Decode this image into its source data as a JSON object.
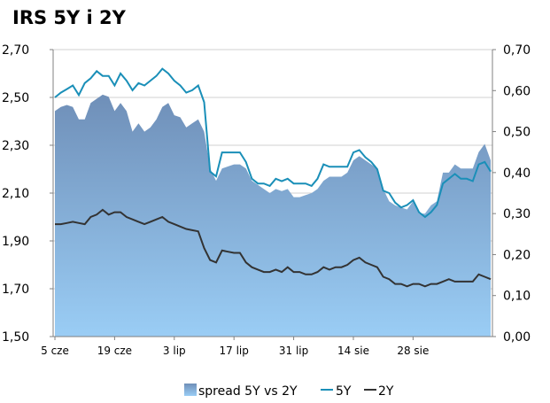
{
  "chart_data": {
    "type": "area",
    "title": "IRS 5Y i 2Y",
    "x_tick_labels": [
      "5 cze",
      "19 cze",
      "3 lip",
      "17 lip",
      "31 lip",
      "14 sie",
      "28 sie"
    ],
    "y_left": {
      "range": [
        1.5,
        2.7
      ],
      "ticks": [
        "1,50",
        "1,70",
        "1,90",
        "2,10",
        "2,30",
        "2,50",
        "2,70"
      ]
    },
    "y_right": {
      "range": [
        0.0,
        0.7
      ],
      "ticks": [
        "0,00",
        "0,10",
        "0,20",
        "0,30",
        "0,40",
        "0,50",
        "0,60",
        "0,70"
      ]
    },
    "grid": "horizontal",
    "legend_placement": "bottom",
    "colors": {
      "spread_top": "#6f8fb8",
      "spread_bottom": "#9acdf5",
      "five_y": "#1a8fb8",
      "two_y": "#333333"
    },
    "series": [
      {
        "name": "spread 5Y vs 2Y",
        "axis": "right",
        "values": [
          0.55,
          0.56,
          0.565,
          0.56,
          0.53,
          0.53,
          0.57,
          0.58,
          0.59,
          0.585,
          0.55,
          0.57,
          0.55,
          0.5,
          0.52,
          0.5,
          0.51,
          0.53,
          0.56,
          0.57,
          0.54,
          0.535,
          0.51,
          0.52,
          0.53,
          0.5,
          0.41,
          0.38,
          0.41,
          0.415,
          0.42,
          0.42,
          0.41,
          0.38,
          0.37,
          0.36,
          0.35,
          0.36,
          0.355,
          0.36,
          0.34,
          0.34,
          0.345,
          0.35,
          0.36,
          0.38,
          0.39,
          0.39,
          0.39,
          0.4,
          0.43,
          0.44,
          0.43,
          0.42,
          0.41,
          0.36,
          0.33,
          0.32,
          0.315,
          0.31,
          0.33,
          0.3,
          0.3,
          0.32,
          0.33,
          0.4,
          0.4,
          0.42,
          0.41,
          0.41,
          0.41,
          0.45,
          0.47,
          0.43
        ]
      },
      {
        "name": "5Y",
        "axis": "left",
        "values": [
          2.5,
          2.52,
          2.535,
          2.55,
          2.51,
          2.56,
          2.58,
          2.61,
          2.59,
          2.59,
          2.55,
          2.6,
          2.57,
          2.53,
          2.56,
          2.55,
          2.57,
          2.59,
          2.62,
          2.6,
          2.57,
          2.55,
          2.52,
          2.53,
          2.55,
          2.48,
          2.19,
          2.17,
          2.27,
          2.27,
          2.27,
          2.27,
          2.23,
          2.16,
          2.14,
          2.14,
          2.13,
          2.16,
          2.15,
          2.16,
          2.14,
          2.14,
          2.14,
          2.13,
          2.16,
          2.22,
          2.21,
          2.21,
          2.21,
          2.21,
          2.27,
          2.28,
          2.25,
          2.23,
          2.2,
          2.11,
          2.1,
          2.06,
          2.04,
          2.05,
          2.07,
          2.02,
          2.0,
          2.02,
          2.05,
          2.14,
          2.16,
          2.18,
          2.16,
          2.16,
          2.15,
          2.22,
          2.23,
          2.19
        ]
      },
      {
        "name": "2Y",
        "axis": "left",
        "values": [
          1.97,
          1.97,
          1.975,
          1.98,
          1.975,
          1.97,
          2.0,
          2.01,
          2.03,
          2.01,
          2.02,
          2.02,
          2.0,
          1.99,
          1.98,
          1.97,
          1.98,
          1.99,
          2.0,
          1.98,
          1.97,
          1.96,
          1.95,
          1.945,
          1.94,
          1.87,
          1.82,
          1.81,
          1.86,
          1.855,
          1.85,
          1.85,
          1.81,
          1.79,
          1.78,
          1.77,
          1.77,
          1.78,
          1.77,
          1.79,
          1.77,
          1.77,
          1.76,
          1.76,
          1.77,
          1.79,
          1.78,
          1.79,
          1.79,
          1.8,
          1.82,
          1.83,
          1.81,
          1.8,
          1.79,
          1.75,
          1.74,
          1.72,
          1.72,
          1.71,
          1.72,
          1.72,
          1.71,
          1.72,
          1.72,
          1.73,
          1.74,
          1.73,
          1.73,
          1.73,
          1.73,
          1.76,
          1.75,
          1.74
        ]
      }
    ]
  }
}
